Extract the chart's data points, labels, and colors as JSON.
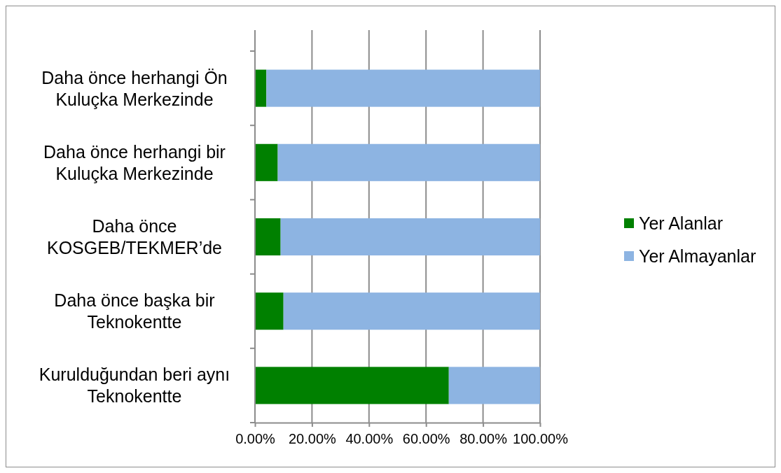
{
  "chart_data": {
    "type": "bar",
    "orientation": "horizontal",
    "stacked": true,
    "categories": [
      "Daha önce herhangi Ön Kuluçka Merkezinde",
      "Daha önce herhangi bir Kuluçka Merkezinde",
      "Daha önce KOSGEB/TEKMER’de",
      "Daha önce başka bir Teknokentte",
      "Kurulduğundan beri aynı Teknokentte"
    ],
    "series": [
      {
        "name": "Yer Alanlar",
        "color": "#008000",
        "values": [
          4,
          8,
          9,
          10,
          68
        ]
      },
      {
        "name": "Yer Almayanlar",
        "color": "#8db4e2",
        "values": [
          96,
          92,
          91,
          90,
          32
        ]
      }
    ],
    "xlim": [
      0,
      100
    ],
    "xticks": [
      {
        "value": 0,
        "label": "0.00%"
      },
      {
        "value": 20,
        "label": "20.00%"
      },
      {
        "value": 40,
        "label": "40.00%"
      },
      {
        "value": 60,
        "label": "60.00%"
      },
      {
        "value": 80,
        "label": "80.00%"
      },
      {
        "value": 100,
        "label": "100.00%"
      }
    ],
    "grid": "x",
    "legend": "right"
  }
}
